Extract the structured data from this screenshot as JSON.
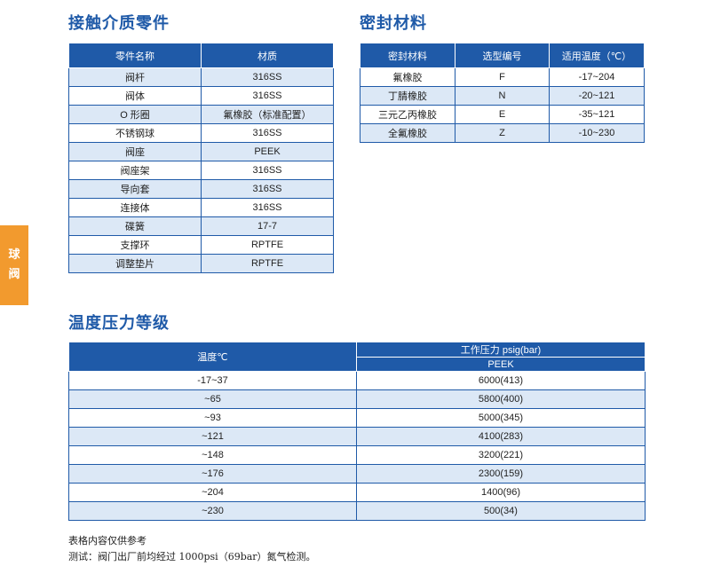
{
  "side_tab": [
    "球",
    "阀"
  ],
  "wetted_parts": {
    "title": "接触介质零件",
    "headers": [
      "零件名称",
      "材质"
    ],
    "rows": [
      [
        "阀杆",
        "316SS"
      ],
      [
        "阀体",
        "316SS"
      ],
      [
        "O 形圈",
        "氟橡胶（标准配置）"
      ],
      [
        "不锈钢球",
        "316SS"
      ],
      [
        "阀座",
        "PEEK"
      ],
      [
        "阀座架",
        "316SS"
      ],
      [
        "导向套",
        "316SS"
      ],
      [
        "连接体",
        "316SS"
      ],
      [
        "碟簧",
        "17-7"
      ],
      [
        "支撑环",
        "RPTFE"
      ],
      [
        "调整垫片",
        "RPTFE"
      ]
    ]
  },
  "seal_materials": {
    "title": "密封材料",
    "headers": [
      "密封材料",
      "选型编号",
      "适用温度（℃）"
    ],
    "rows": [
      [
        "氟橡胶",
        "F",
        "-17~204"
      ],
      [
        "丁腈橡胶",
        "N",
        "-20~121"
      ],
      [
        "三元乙丙橡胶",
        "E",
        "-35~121"
      ],
      [
        "全氟橡胶",
        "Z",
        "-10~230"
      ]
    ]
  },
  "pressure_rating": {
    "title": "温度压力等级",
    "header_temp": "温度℃",
    "header_pressure": "工作压力 psig(bar)",
    "header_material": "PEEK",
    "rows": [
      [
        "-17~37",
        "6000(413)"
      ],
      [
        "~65",
        "5800(400)"
      ],
      [
        "~93",
        "5000(345)"
      ],
      [
        "~121",
        "4100(283)"
      ],
      [
        "~148",
        "3200(221)"
      ],
      [
        "~176",
        "2300(159)"
      ],
      [
        "~204",
        "1400(96)"
      ],
      [
        "~230",
        "500(34)"
      ]
    ]
  },
  "notes": {
    "reference": "表格内容仅供参考",
    "test": "测试：阀门出厂前均经过 1000psi（69bar）氮气检测。"
  }
}
